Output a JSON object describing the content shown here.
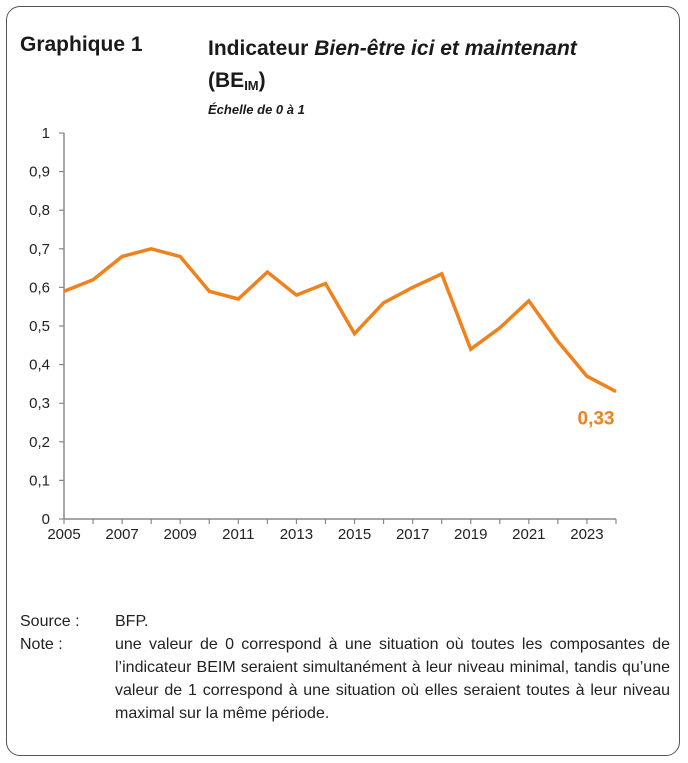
{
  "figure": {
    "number": "Graphique 1",
    "title_plain": "Indicateur ",
    "title_italic": "Bien-être ici et maintenant",
    "title_abbr": "BE",
    "title_abbr_sub": "IM",
    "scale_note": "Échelle de 0 à 1"
  },
  "chart_data": {
    "type": "line",
    "title": "Indicateur Bien-être ici et maintenant (BEIM)",
    "xlabel": "",
    "ylabel": "",
    "xlim": [
      2005,
      2024
    ],
    "ylim": [
      0,
      1
    ],
    "y_ticks": [
      "0",
      "0,1",
      "0,2",
      "0,3",
      "0,4",
      "0,5",
      "0,6",
      "0,7",
      "0,8",
      "0,9",
      "1"
    ],
    "y_tick_values": [
      0,
      0.1,
      0.2,
      0.3,
      0.4,
      0.5,
      0.6,
      0.7,
      0.8,
      0.9,
      1
    ],
    "x_ticks": [
      "2005",
      "2007",
      "2009",
      "2011",
      "2013",
      "2015",
      "2017",
      "2019",
      "2021",
      "2023"
    ],
    "x_tick_values": [
      2005,
      2007,
      2009,
      2011,
      2013,
      2015,
      2017,
      2019,
      2021,
      2023
    ],
    "series": [
      {
        "name": "BEIM",
        "color": "#F0821E",
        "x": [
          2005,
          2006,
          2007,
          2008,
          2009,
          2010,
          2011,
          2012,
          2013,
          2014,
          2015,
          2016,
          2017,
          2018,
          2019,
          2020,
          2021,
          2022,
          2023,
          2024
        ],
        "values": [
          0.59,
          0.62,
          0.68,
          0.7,
          0.68,
          0.59,
          0.57,
          0.64,
          0.58,
          0.61,
          0.48,
          0.56,
          0.6,
          0.635,
          0.44,
          0.495,
          0.565,
          0.46,
          0.37,
          0.33
        ]
      }
    ],
    "end_label": "0,33"
  },
  "notes": {
    "source_label": "Source :",
    "source_text": "BFP.",
    "note_label": "Note :",
    "note_text": "une valeur de 0 correspond à une situation où toutes les composantes de l’indicateur BEIM seraient simultanément à leur niveau minimal, tandis qu’une valeur de 1 correspond à une situation où elles seraient toutes à leur niveau maximal sur la même période."
  }
}
